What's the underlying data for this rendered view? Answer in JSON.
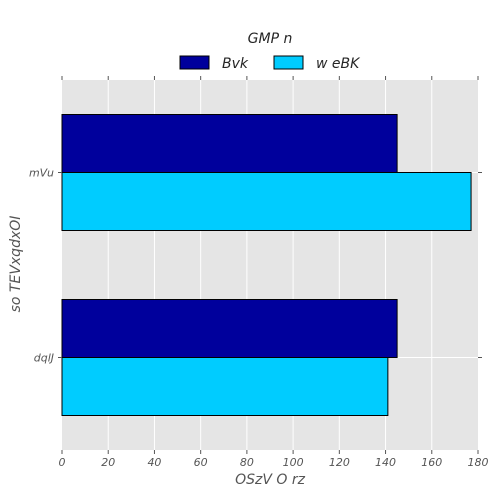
{
  "chart_data": {
    "type": "bar",
    "orientation": "horizontal",
    "title": "",
    "legend": {
      "title": "GMP n",
      "placement": "top-center",
      "entries": [
        "Bvk",
        "w eBK"
      ]
    },
    "xlabel": "OSzV O rz",
    "ylabel": "so TEVxqdxOI",
    "xlim": [
      0,
      180
    ],
    "xticks": [
      0,
      20,
      40,
      60,
      80,
      100,
      120,
      140,
      160,
      180
    ],
    "categories": [
      "dqlJ",
      "mVu"
    ],
    "series": [
      {
        "name": "Bvk",
        "color": "#00009c",
        "values": [
          145,
          145
        ]
      },
      {
        "name": "w eBK",
        "color": "#00ccff",
        "values": [
          141,
          177
        ]
      }
    ],
    "grid": true,
    "background": "#e5e5e5"
  }
}
